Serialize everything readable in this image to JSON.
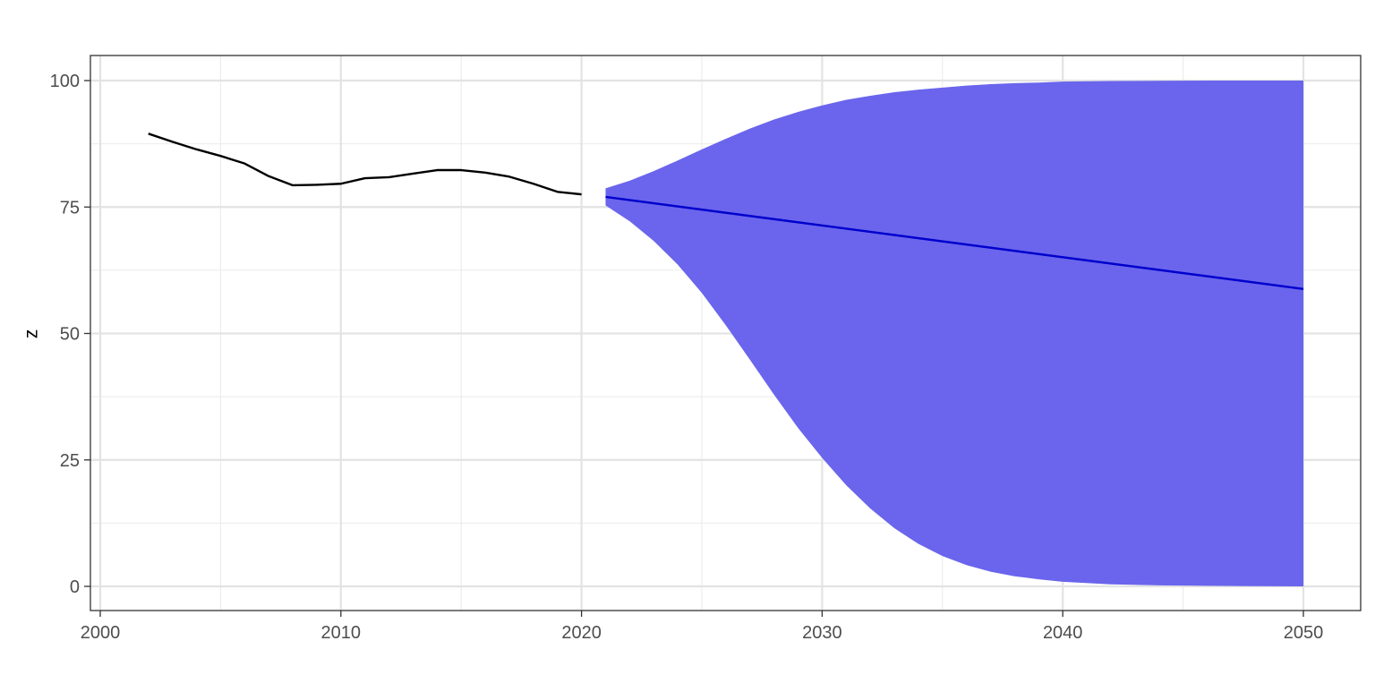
{
  "chart_data": {
    "type": "line",
    "title": "",
    "xlabel": "",
    "ylabel": "z",
    "xlim": [
      2000,
      2050
    ],
    "ylim": [
      0,
      100
    ],
    "x_ticks": [
      "2000",
      "2010",
      "2020",
      "2030",
      "2040",
      "2050"
    ],
    "y_ticks": [
      "0",
      "25",
      "50",
      "75",
      "100"
    ],
    "grid": true,
    "legend": "none",
    "series": [
      {
        "role": "observed",
        "color": "#000000",
        "x": [
          2002,
          2003,
          2004,
          2005,
          2006,
          2007,
          2008,
          2009,
          2010,
          2011,
          2012,
          2013,
          2014,
          2015,
          2016,
          2017,
          2018,
          2019,
          2020
        ],
        "y": [
          89.5,
          87.9,
          86.4,
          85.1,
          83.6,
          81.1,
          79.3,
          79.4,
          79.6,
          80.7,
          80.9,
          81.6,
          82.3,
          82.3,
          81.8,
          81.0,
          79.6,
          78.0,
          77.5
        ]
      },
      {
        "role": "forecast",
        "color": "#0000CD",
        "x": [
          2021,
          2050
        ],
        "y": [
          77.0,
          58.8
        ]
      }
    ],
    "band": {
      "color": "#6A65EC",
      "x": [
        2021,
        2022,
        2023,
        2024,
        2025,
        2026,
        2027,
        2028,
        2029,
        2030,
        2031,
        2032,
        2033,
        2034,
        2035,
        2036,
        2037,
        2038,
        2039,
        2040,
        2042,
        2044,
        2046,
        2048,
        2050
      ],
      "lower": [
        75.3,
        72.2,
        68.3,
        63.6,
        58.0,
        51.6,
        44.8,
        37.9,
        31.3,
        25.4,
        20.0,
        15.4,
        11.5,
        8.4,
        6.0,
        4.2,
        2.9,
        2.0,
        1.4,
        0.9,
        0.4,
        0.2,
        0.1,
        0.05,
        0.0
      ],
      "upper": [
        78.7,
        80.2,
        82.1,
        84.2,
        86.4,
        88.5,
        90.5,
        92.3,
        93.8,
        95.1,
        96.2,
        97.0,
        97.7,
        98.2,
        98.6,
        99.0,
        99.3,
        99.5,
        99.6,
        99.8,
        99.9,
        99.95,
        100,
        100,
        100
      ]
    }
  }
}
